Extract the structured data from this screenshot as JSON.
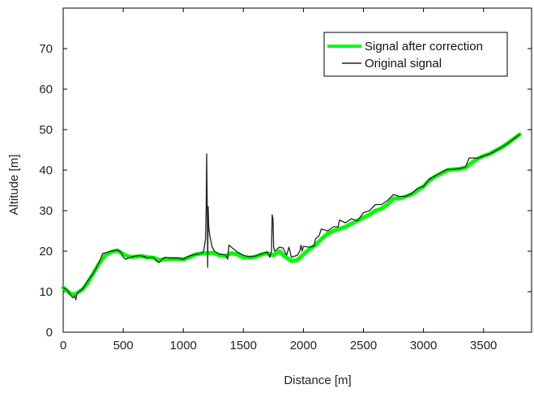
{
  "chart_data": {
    "type": "line",
    "title": "",
    "xlabel": "Distance [m]",
    "ylabel": "Altitude [m]",
    "xlim": [
      0,
      3900
    ],
    "ylim": [
      0,
      80
    ],
    "xticks": [
      0,
      500,
      1000,
      1500,
      2000,
      2500,
      3000,
      3500
    ],
    "yticks": [
      0,
      10,
      20,
      30,
      40,
      50,
      60,
      70
    ],
    "grid": false,
    "legend_position": "top-right",
    "series": [
      {
        "name": "Signal after correction",
        "color": "#00ff00",
        "points": [
          [
            0,
            11
          ],
          [
            30,
            10.3
          ],
          [
            60,
            9.6
          ],
          [
            90,
            9.3
          ],
          [
            120,
            9.8
          ],
          [
            160,
            10.5
          ],
          [
            200,
            12
          ],
          [
            250,
            14.5
          ],
          [
            300,
            17
          ],
          [
            350,
            19
          ],
          [
            400,
            19.8
          ],
          [
            450,
            20.2
          ],
          [
            500,
            19.3
          ],
          [
            550,
            18.6
          ],
          [
            600,
            18.6
          ],
          [
            650,
            18.8
          ],
          [
            700,
            18.5
          ],
          [
            750,
            18.4
          ],
          [
            800,
            17.8
          ],
          [
            850,
            18
          ],
          [
            900,
            18.1
          ],
          [
            950,
            18.1
          ],
          [
            1000,
            18
          ],
          [
            1050,
            18.5
          ],
          [
            1100,
            19.2
          ],
          [
            1150,
            19.4
          ],
          [
            1200,
            19.5
          ],
          [
            1250,
            19.6
          ],
          [
            1300,
            19
          ],
          [
            1350,
            18.8
          ],
          [
            1400,
            19.5
          ],
          [
            1450,
            19.2
          ],
          [
            1500,
            18.5
          ],
          [
            1550,
            18.4
          ],
          [
            1600,
            18.6
          ],
          [
            1650,
            19.2
          ],
          [
            1700,
            19.5
          ],
          [
            1750,
            19
          ],
          [
            1800,
            20
          ],
          [
            1850,
            18.6
          ],
          [
            1900,
            17.6
          ],
          [
            1950,
            17.8
          ],
          [
            2000,
            19.2
          ],
          [
            2050,
            20.5
          ],
          [
            2100,
            21.5
          ],
          [
            2150,
            23
          ],
          [
            2200,
            24.3
          ],
          [
            2250,
            25
          ],
          [
            2300,
            25.5
          ],
          [
            2350,
            26
          ],
          [
            2400,
            26.8
          ],
          [
            2450,
            27.5
          ],
          [
            2500,
            28.3
          ],
          [
            2550,
            29
          ],
          [
            2600,
            30
          ],
          [
            2650,
            30.5
          ],
          [
            2700,
            31.5
          ],
          [
            2750,
            33
          ],
          [
            2800,
            33
          ],
          [
            2850,
            33.5
          ],
          [
            2900,
            34
          ],
          [
            2950,
            35
          ],
          [
            3000,
            36
          ],
          [
            3050,
            37.5
          ],
          [
            3100,
            38.5
          ],
          [
            3150,
            39.2
          ],
          [
            3200,
            40
          ],
          [
            3250,
            40.2
          ],
          [
            3300,
            40.3
          ],
          [
            3350,
            40.6
          ],
          [
            3400,
            41.8
          ],
          [
            3450,
            42.8
          ],
          [
            3500,
            43.5
          ],
          [
            3550,
            44
          ],
          [
            3600,
            44.8
          ],
          [
            3650,
            45.6
          ],
          [
            3700,
            46.6
          ],
          [
            3750,
            47.7
          ],
          [
            3800,
            48.8
          ]
        ]
      },
      {
        "name": "Original signal",
        "color": "#222222",
        "points": [
          [
            0,
            11
          ],
          [
            30,
            10.5
          ],
          [
            60,
            9.2
          ],
          [
            80,
            8.5
          ],
          [
            95,
            9
          ],
          [
            105,
            8
          ],
          [
            115,
            9.5
          ],
          [
            140,
            10.2
          ],
          [
            170,
            11
          ],
          [
            200,
            12.5
          ],
          [
            250,
            14.5
          ],
          [
            300,
            17.3
          ],
          [
            330,
            19.5
          ],
          [
            350,
            19.6
          ],
          [
            400,
            20
          ],
          [
            450,
            20.3
          ],
          [
            480,
            19.8
          ],
          [
            500,
            18.5
          ],
          [
            520,
            18
          ],
          [
            550,
            18.4
          ],
          [
            600,
            18.8
          ],
          [
            650,
            18.9
          ],
          [
            700,
            18.4
          ],
          [
            750,
            18.5
          ],
          [
            780,
            17.5
          ],
          [
            800,
            17.2
          ],
          [
            830,
            18.2
          ],
          [
            850,
            18.5
          ],
          [
            900,
            18.3
          ],
          [
            950,
            18.3
          ],
          [
            1000,
            18
          ],
          [
            1050,
            18.8
          ],
          [
            1100,
            19.2
          ],
          [
            1150,
            19.5
          ],
          [
            1170,
            20
          ],
          [
            1185,
            23
          ],
          [
            1190,
            30
          ],
          [
            1195,
            44
          ],
          [
            1200,
            30
          ],
          [
            1203,
            16
          ],
          [
            1207,
            31
          ],
          [
            1212,
            26
          ],
          [
            1220,
            24
          ],
          [
            1240,
            21
          ],
          [
            1260,
            20
          ],
          [
            1300,
            19.3
          ],
          [
            1350,
            19.1
          ],
          [
            1370,
            18
          ],
          [
            1380,
            21.5
          ],
          [
            1400,
            21
          ],
          [
            1420,
            20.5
          ],
          [
            1450,
            19.8
          ],
          [
            1500,
            19
          ],
          [
            1550,
            18.6
          ],
          [
            1600,
            18.8
          ],
          [
            1650,
            19.3
          ],
          [
            1700,
            19.8
          ],
          [
            1720,
            18.5
          ],
          [
            1735,
            20
          ],
          [
            1740,
            29
          ],
          [
            1747,
            28
          ],
          [
            1752,
            21
          ],
          [
            1760,
            20
          ],
          [
            1800,
            21
          ],
          [
            1830,
            20.8
          ],
          [
            1860,
            19
          ],
          [
            1880,
            21
          ],
          [
            1900,
            18.5
          ],
          [
            1950,
            19
          ],
          [
            1970,
            20
          ],
          [
            1980,
            21.5
          ],
          [
            1990,
            20
          ],
          [
            2000,
            21.2
          ],
          [
            2050,
            21
          ],
          [
            2090,
            21.3
          ],
          [
            2100,
            23
          ],
          [
            2130,
            23.8
          ],
          [
            2150,
            25.5
          ],
          [
            2200,
            25
          ],
          [
            2250,
            26
          ],
          [
            2290,
            26
          ],
          [
            2300,
            27.7
          ],
          [
            2350,
            27
          ],
          [
            2400,
            28
          ],
          [
            2450,
            27.5
          ],
          [
            2500,
            29.5
          ],
          [
            2550,
            30
          ],
          [
            2600,
            31.5
          ],
          [
            2650,
            31.5
          ],
          [
            2700,
            32.5
          ],
          [
            2750,
            34
          ],
          [
            2800,
            33.5
          ],
          [
            2850,
            33.5
          ],
          [
            2900,
            34.2
          ],
          [
            2950,
            35.5
          ],
          [
            3000,
            36
          ],
          [
            3050,
            37.8
          ],
          [
            3100,
            38.6
          ],
          [
            3150,
            39.5
          ],
          [
            3200,
            40.2
          ],
          [
            3250,
            40.2
          ],
          [
            3300,
            40.4
          ],
          [
            3350,
            40.8
          ],
          [
            3380,
            43
          ],
          [
            3420,
            43
          ],
          [
            3450,
            42.9
          ],
          [
            3500,
            43.5
          ],
          [
            3550,
            44
          ],
          [
            3600,
            44.8
          ],
          [
            3650,
            45.6
          ],
          [
            3700,
            46.6
          ],
          [
            3750,
            47.7
          ],
          [
            3800,
            48.8
          ]
        ]
      }
    ]
  }
}
